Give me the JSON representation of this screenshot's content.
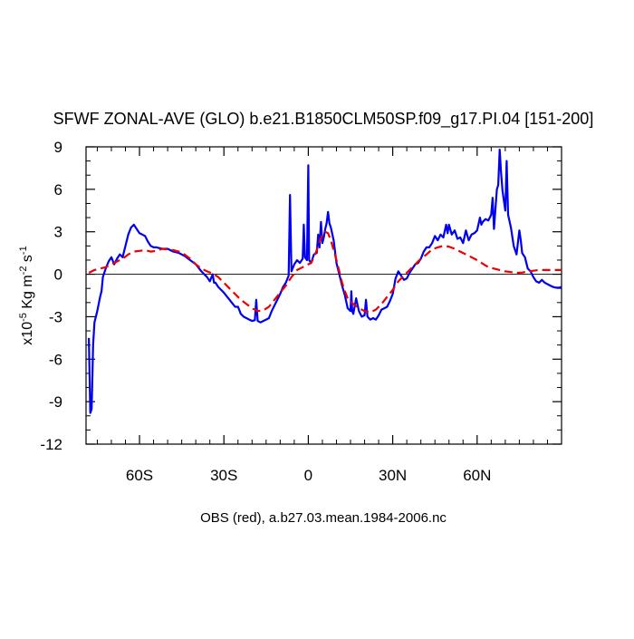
{
  "chart_data": {
    "type": "line",
    "title": "SFWF ZONAL-AVE (GLO) b.e21.B1850CLM50SP.f09_g17.PI.04 [151-200]",
    "footer": "OBS (red), a.b27.03.mean.1984-2006.nc",
    "ylabel": {
      "prefix": "x10",
      "exponent": "-5",
      "unit_main": " Kg m",
      "unit_exp1": "-2",
      "unit_mid": " s",
      "unit_exp2": "-1"
    },
    "xlim": [
      -79,
      90
    ],
    "ylim": [
      -12,
      9
    ],
    "xticks": [
      {
        "value": -60,
        "label": "60S"
      },
      {
        "value": -30,
        "label": "30S"
      },
      {
        "value": 0,
        "label": "0"
      },
      {
        "value": 30,
        "label": "30N"
      },
      {
        "value": 60,
        "label": "60N"
      }
    ],
    "yticks": [
      {
        "value": 9,
        "label": "9"
      },
      {
        "value": 6,
        "label": "6"
      },
      {
        "value": 3,
        "label": "3"
      },
      {
        "value": 0,
        "label": "0"
      },
      {
        "value": -3,
        "label": "-3"
      },
      {
        "value": -6,
        "label": "-6"
      },
      {
        "value": -9,
        "label": "-9"
      },
      {
        "value": -12,
        "label": "-12"
      }
    ],
    "zero_line": true,
    "series": [
      {
        "color": "#0000ee",
        "dash": "solid",
        "points": [
          [
            -78,
            -4.5
          ],
          [
            -77.5,
            -9.8
          ],
          [
            -77,
            -9.5
          ],
          [
            -76.5,
            -5
          ],
          [
            -76,
            -3.4
          ],
          [
            -75,
            -2.6
          ],
          [
            -74,
            -1.6
          ],
          [
            -73.5,
            -1.2
          ],
          [
            -73,
            -0.2
          ],
          [
            -72,
            0.4
          ],
          [
            -71,
            0.9
          ],
          [
            -70,
            1.2
          ],
          [
            -69,
            0.7
          ],
          [
            -68,
            1.1
          ],
          [
            -67,
            1.4
          ],
          [
            -66,
            1.2
          ],
          [
            -65,
            2
          ],
          [
            -64,
            2.8
          ],
          [
            -63,
            3.3
          ],
          [
            -62,
            3.5
          ],
          [
            -61,
            3.2
          ],
          [
            -60,
            2.9
          ],
          [
            -59,
            2.8
          ],
          [
            -58,
            2.7
          ],
          [
            -57,
            2.3
          ],
          [
            -56,
            2
          ],
          [
            -55,
            1.9
          ],
          [
            -54,
            1.9
          ],
          [
            -52,
            1.8
          ],
          [
            -50,
            1.8
          ],
          [
            -48,
            1.6
          ],
          [
            -46,
            1.5
          ],
          [
            -44,
            1.3
          ],
          [
            -42,
            1
          ],
          [
            -40,
            0.7
          ],
          [
            -38,
            0.2
          ],
          [
            -36,
            -0.2
          ],
          [
            -35,
            -0.5
          ],
          [
            -34,
            0
          ],
          [
            -33.5,
            -0.6
          ],
          [
            -33,
            -0.6
          ],
          [
            -32,
            -0.9
          ],
          [
            -30,
            -1.3
          ],
          [
            -28,
            -1.8
          ],
          [
            -26,
            -2.3
          ],
          [
            -25,
            -2.3
          ],
          [
            -24,
            -2.8
          ],
          [
            -23,
            -3
          ],
          [
            -22,
            -3.1
          ],
          [
            -21,
            -3.2
          ],
          [
            -20,
            -3.3
          ],
          [
            -19,
            -3.25
          ],
          [
            -18.5,
            -1.8
          ],
          [
            -18,
            -3.3
          ],
          [
            -17,
            -3.4
          ],
          [
            -16,
            -3.3
          ],
          [
            -15,
            -3.2
          ],
          [
            -14,
            -3.1
          ],
          [
            -13,
            -2.6
          ],
          [
            -12,
            -2.2
          ],
          [
            -11,
            -1.8
          ],
          [
            -10,
            -1.4
          ],
          [
            -9,
            -0.9
          ],
          [
            -8,
            -0.6
          ],
          [
            -7,
            -0.1
          ],
          [
            -6.5,
            5.6
          ],
          [
            -6,
            0.2
          ],
          [
            -5,
            0.7
          ],
          [
            -4,
            1
          ],
          [
            -3,
            0.8
          ],
          [
            -2,
            1.1
          ],
          [
            -1.6,
            3.5
          ],
          [
            -1.2,
            1.2
          ],
          [
            -0.5,
            1
          ],
          [
            0,
            7.7
          ],
          [
            0.3,
            1
          ],
          [
            1,
            0.8
          ],
          [
            2,
            1.4
          ],
          [
            3,
            1.5
          ],
          [
            3.5,
            2.8
          ],
          [
            4,
            1.9
          ],
          [
            4.5,
            3.7
          ],
          [
            5,
            2.2
          ],
          [
            5.5,
            2.6
          ],
          [
            6,
            3.2
          ],
          [
            6.5,
            3.6
          ],
          [
            7,
            4.4
          ],
          [
            7.5,
            3.6
          ],
          [
            8,
            3.3
          ],
          [
            9,
            2.4
          ],
          [
            10,
            0.8
          ],
          [
            11,
            0
          ],
          [
            12,
            -0.8
          ],
          [
            13,
            -1.5
          ],
          [
            14,
            -2.4
          ],
          [
            15,
            -2.6
          ],
          [
            15.3,
            -1.2
          ],
          [
            15.6,
            -2.6
          ],
          [
            16,
            -2.8
          ],
          [
            17,
            -1.7
          ],
          [
            18,
            -2.6
          ],
          [
            19,
            -3
          ],
          [
            20,
            -2.9
          ],
          [
            20.5,
            -1.8
          ],
          [
            21,
            -3
          ],
          [
            22,
            -3.2
          ],
          [
            23,
            -3.1
          ],
          [
            24,
            -3.2
          ],
          [
            25,
            -2.9
          ],
          [
            26,
            -2.5
          ],
          [
            27,
            -2.4
          ],
          [
            28,
            -2.3
          ],
          [
            29,
            -1.9
          ],
          [
            30,
            -1.4
          ],
          [
            31,
            -0.3
          ],
          [
            32,
            0.2
          ],
          [
            33,
            -0.1
          ],
          [
            34,
            -0.4
          ],
          [
            35,
            -0.3
          ],
          [
            36,
            0.1
          ],
          [
            37,
            0.4
          ],
          [
            38,
            0.7
          ],
          [
            39,
            0.8
          ],
          [
            40,
            1.1
          ],
          [
            41,
            1.6
          ],
          [
            42,
            1.9
          ],
          [
            43,
            1.9
          ],
          [
            44,
            2.2
          ],
          [
            45,
            2.7
          ],
          [
            46,
            2.4
          ],
          [
            47,
            2.8
          ],
          [
            48,
            2.6
          ],
          [
            49,
            3.5
          ],
          [
            49.5,
            2.9
          ],
          [
            50,
            3.5
          ],
          [
            51,
            2.8
          ],
          [
            52,
            3.1
          ],
          [
            53,
            2.5
          ],
          [
            54,
            2.6
          ],
          [
            55,
            2.2
          ],
          [
            56,
            3.1
          ],
          [
            57,
            2.4
          ],
          [
            58,
            2.8
          ],
          [
            59,
            2.9
          ],
          [
            60,
            3.1
          ],
          [
            61,
            4
          ],
          [
            61.5,
            3.5
          ],
          [
            62,
            3.7
          ],
          [
            63,
            3.9
          ],
          [
            64,
            3.8
          ],
          [
            65,
            4.2
          ],
          [
            65.5,
            5.4
          ],
          [
            66,
            3.2
          ],
          [
            66.5,
            4.6
          ],
          [
            67,
            6
          ],
          [
            67.5,
            6.3
          ],
          [
            68,
            8.8
          ],
          [
            68.5,
            7.2
          ],
          [
            69,
            5.9
          ],
          [
            70,
            4.5
          ],
          [
            70.5,
            8.0
          ],
          [
            71,
            4.2
          ],
          [
            72,
            3.3
          ],
          [
            73,
            2
          ],
          [
            74,
            1.4
          ],
          [
            75,
            3.1
          ],
          [
            75.5,
            2.4
          ],
          [
            76,
            1.5
          ],
          [
            77,
            1.2
          ],
          [
            78,
            0.4
          ],
          [
            79,
            0.2
          ],
          [
            80,
            -0.2
          ],
          [
            81,
            -0.5
          ],
          [
            82,
            -0.6
          ],
          [
            83,
            -0.4
          ],
          [
            84,
            -0.6
          ],
          [
            85,
            -0.7
          ],
          [
            86,
            -0.8
          ],
          [
            87,
            -0.9
          ],
          [
            88,
            -0.95
          ],
          [
            89,
            -0.95
          ],
          [
            90,
            -0.9
          ]
        ]
      },
      {
        "color": "#ee0000",
        "dash": "dashed",
        "points": [
          [
            -78,
            0.1
          ],
          [
            -76,
            0.3
          ],
          [
            -74,
            0.4
          ],
          [
            -72,
            0.5
          ],
          [
            -70,
            0.7
          ],
          [
            -68,
            0.9
          ],
          [
            -66,
            1.1
          ],
          [
            -64,
            1.4
          ],
          [
            -62,
            1.6
          ],
          [
            -60,
            1.65
          ],
          [
            -58,
            1.7
          ],
          [
            -56,
            1.6
          ],
          [
            -54,
            1.65
          ],
          [
            -52,
            1.8
          ],
          [
            -50,
            1.75
          ],
          [
            -48,
            1.7
          ],
          [
            -46,
            1.6
          ],
          [
            -44,
            1.4
          ],
          [
            -42,
            1.1
          ],
          [
            -40,
            0.7
          ],
          [
            -38,
            0.4
          ],
          [
            -36,
            0.2
          ],
          [
            -34,
            0.05
          ],
          [
            -32,
            -0.2
          ],
          [
            -30,
            -0.6
          ],
          [
            -28,
            -1
          ],
          [
            -26,
            -1.4
          ],
          [
            -24,
            -1.8
          ],
          [
            -22,
            -2.1
          ],
          [
            -20,
            -2.4
          ],
          [
            -18,
            -2.6
          ],
          [
            -16,
            -2.55
          ],
          [
            -14,
            -2.3
          ],
          [
            -12,
            -1.8
          ],
          [
            -10,
            -1.3
          ],
          [
            -8,
            -0.8
          ],
          [
            -6,
            -0.2
          ],
          [
            -4,
            0.3
          ],
          [
            -2,
            0.5
          ],
          [
            0,
            0.7
          ],
          [
            1,
            0.8
          ],
          [
            2,
            1.2
          ],
          [
            3,
            1.7
          ],
          [
            4,
            2.3
          ],
          [
            5,
            2.8
          ],
          [
            6,
            3
          ],
          [
            7,
            2.9
          ],
          [
            8,
            2.4
          ],
          [
            9,
            1.7
          ],
          [
            10,
            1
          ],
          [
            11,
            0.2
          ],
          [
            12,
            -0.6
          ],
          [
            13,
            -1.2
          ],
          [
            14,
            -1.7
          ],
          [
            16,
            -2.1
          ],
          [
            18,
            -2.4
          ],
          [
            20,
            -2.6
          ],
          [
            22,
            -2.7
          ],
          [
            24,
            -2.5
          ],
          [
            26,
            -2.1
          ],
          [
            28,
            -1.6
          ],
          [
            30,
            -1.1
          ],
          [
            32,
            -0.5
          ],
          [
            34,
            -0.1
          ],
          [
            36,
            0.3
          ],
          [
            38,
            0.7
          ],
          [
            40,
            1.1
          ],
          [
            42,
            1.4
          ],
          [
            44,
            1.75
          ],
          [
            46,
            1.9
          ],
          [
            48,
            2
          ],
          [
            50,
            1.95
          ],
          [
            52,
            1.8
          ],
          [
            54,
            1.6
          ],
          [
            56,
            1.4
          ],
          [
            58,
            1.2
          ],
          [
            60,
            1
          ],
          [
            62,
            0.75
          ],
          [
            64,
            0.5
          ],
          [
            66,
            0.4
          ],
          [
            68,
            0.3
          ],
          [
            70,
            0.2
          ],
          [
            72,
            0.15
          ],
          [
            74,
            0.1
          ],
          [
            76,
            0.12
          ],
          [
            78,
            0.2
          ],
          [
            80,
            0.25
          ],
          [
            82,
            0.3
          ],
          [
            84,
            0.3
          ],
          [
            86,
            0.3
          ],
          [
            88,
            0.3
          ],
          [
            90,
            0.3
          ]
        ]
      }
    ]
  }
}
